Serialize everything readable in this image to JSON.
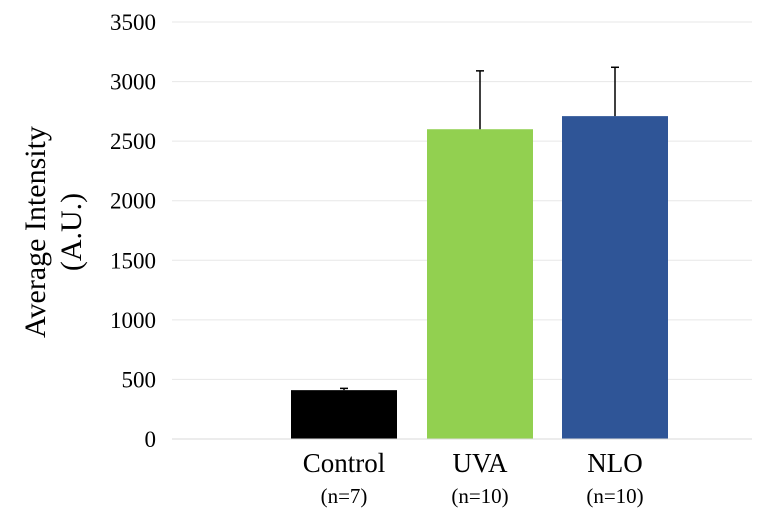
{
  "chart_data": {
    "type": "bar",
    "categories": [
      "Control",
      "UVA",
      "NLO"
    ],
    "category_sublabels": [
      "(n=7)",
      "(n=10)",
      "(n=10)"
    ],
    "values": [
      410,
      2600,
      2710
    ],
    "error_bars": [
      15,
      490,
      410
    ],
    "colors": [
      "#000000",
      "#92d050",
      "#2f5597"
    ],
    "title": "",
    "xlabel": "",
    "ylabel_lines": [
      "Average Intensity",
      "(A.U.)"
    ],
    "ylim": [
      0,
      3500
    ],
    "yticks": [
      0,
      500,
      1000,
      1500,
      2000,
      2500,
      3000,
      3500
    ],
    "grid": true,
    "legend": "none"
  }
}
